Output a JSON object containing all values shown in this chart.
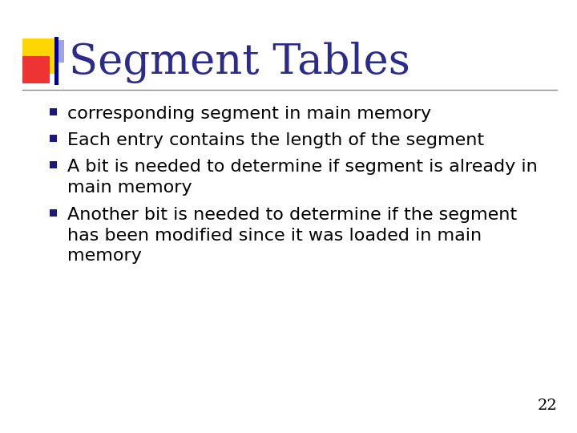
{
  "title": "Segment Tables",
  "title_color": "#2B2B8B",
  "title_fontsize": 38,
  "background_color": "#FFFFFF",
  "bullet_color": "#1A1A7A",
  "bullet_text_color": "#000000",
  "bullet_fontsize": 16,
  "page_number": "22",
  "bullets": [
    "corresponding segment in main memory",
    "Each entry contains the length of the segment",
    "A bit is needed to determine if segment is already in\nmain memory",
    "Another bit is needed to determine if the segment\nhas been modified since it was loaded in main\nmemory"
  ],
  "line_color": "#888888",
  "logo_yellow": "#FFD700",
  "logo_red": "#EE3333",
  "logo_darkblue": "#000099",
  "logo_lightblue": "#6666CC"
}
